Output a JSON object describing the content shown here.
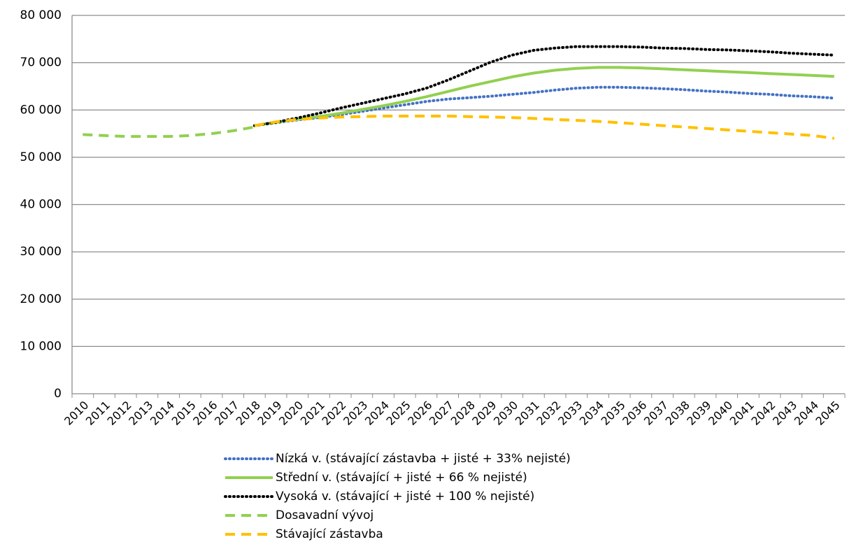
{
  "chart_data": {
    "type": "line",
    "categories": [
      "2010",
      "2011",
      "2012",
      "2013",
      "2014",
      "2015",
      "2016",
      "2017",
      "2018",
      "2019",
      "2020",
      "2021",
      "2022",
      "2023",
      "2024",
      "2025",
      "2026",
      "2027",
      "2028",
      "2029",
      "2030",
      "2031",
      "2032",
      "2033",
      "2034",
      "2035",
      "2036",
      "2037",
      "2038",
      "2039",
      "2040",
      "2041",
      "2042",
      "2043",
      "2044",
      "2045"
    ],
    "series": [
      {
        "name": "Nízká v. (stávající zástavba + jisté + 33% nejisté)",
        "color": "#4472c4",
        "style": "dotted",
        "values": [
          null,
          null,
          null,
          null,
          null,
          null,
          null,
          null,
          56700,
          57300,
          57900,
          58400,
          59000,
          59700,
          60400,
          61100,
          61800,
          62300,
          62600,
          62900,
          63300,
          63700,
          64200,
          64600,
          64800,
          64800,
          64700,
          64500,
          64300,
          64000,
          63800,
          63500,
          63300,
          63000,
          62800,
          62500
        ]
      },
      {
        "name": "Střední v. (stávající + jisté + 66 % nejisté)",
        "color": "#92d050",
        "style": "solid",
        "values": [
          null,
          null,
          null,
          null,
          null,
          null,
          null,
          null,
          56700,
          57400,
          58000,
          58600,
          59300,
          60100,
          60900,
          61800,
          62800,
          63900,
          65000,
          66000,
          67000,
          67800,
          68400,
          68800,
          69000,
          69000,
          68900,
          68700,
          68500,
          68300,
          68100,
          67900,
          67700,
          67500,
          67300,
          67100
        ]
      },
      {
        "name": "Vysoká v. (stávající + jisté + 100 % nejisté)",
        "color": "#000000",
        "style": "dotted",
        "values": [
          null,
          null,
          null,
          null,
          null,
          null,
          null,
          null,
          56700,
          57400,
          58300,
          59300,
          60400,
          61400,
          62400,
          63400,
          64600,
          66300,
          68200,
          70100,
          71600,
          72600,
          73100,
          73400,
          73400,
          73400,
          73300,
          73100,
          73000,
          72800,
          72700,
          72500,
          72300,
          72000,
          71800,
          71600
        ]
      },
      {
        "name": "Dosavadní vývoj",
        "color": "#92d050",
        "style": "dashed",
        "values": [
          54800,
          54600,
          54400,
          54400,
          54400,
          54600,
          55000,
          55600,
          56400,
          null,
          null,
          null,
          null,
          null,
          null,
          null,
          null,
          null,
          null,
          null,
          null,
          null,
          null,
          null,
          null,
          null,
          null,
          null,
          null,
          null,
          null,
          null,
          null,
          null,
          null,
          null
        ]
      },
      {
        "name": "Stávající zástavba",
        "color": "#ffc000",
        "style": "dashed",
        "values": [
          null,
          null,
          null,
          null,
          null,
          null,
          null,
          null,
          56700,
          57500,
          58000,
          58300,
          58500,
          58600,
          58700,
          58700,
          58700,
          58700,
          58600,
          58500,
          58400,
          58200,
          58000,
          57800,
          57600,
          57300,
          57000,
          56700,
          56400,
          56100,
          55800,
          55500,
          55200,
          54900,
          54600,
          54000
        ]
      }
    ],
    "ylim": [
      0,
      80000
    ],
    "yticks": [
      0,
      {
        "value": 10000,
        "label": "10 000"
      },
      {
        "value": 20000,
        "label": "20 000"
      },
      {
        "value": 30000,
        "label": "30 000"
      },
      {
        "value": 40000,
        "label": "40 000"
      },
      {
        "value": 50000,
        "label": "50 000"
      },
      {
        "value": 60000,
        "label": "60 000"
      },
      {
        "value": 70000,
        "label": "70 000"
      },
      {
        "value": 80000,
        "label": "80 000"
      }
    ],
    "grid": true
  }
}
